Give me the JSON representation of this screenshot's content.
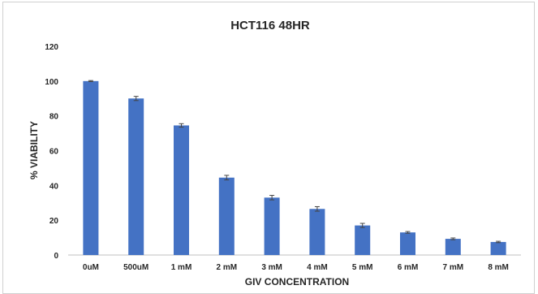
{
  "chart_data": {
    "type": "bar",
    "title": "HCT116 48HR",
    "xlabel": "GIV CONCENTRATION",
    "ylabel": "% VIABILITY",
    "categories": [
      "0uM",
      "500uM",
      "1 mM",
      "2 mM",
      "3 mM",
      "4 mM",
      "5 mM",
      "6 mM",
      "7 mM",
      "8 mM"
    ],
    "values": [
      100,
      90,
      74.5,
      44.5,
      33,
      26.5,
      17,
      13,
      9.3,
      7.5
    ],
    "errors": [
      0.3,
      1.2,
      1.0,
      1.3,
      1.3,
      1.3,
      1.2,
      0.5,
      0.5,
      0.4
    ],
    "ylim": [
      0,
      120
    ],
    "yticks": [
      0,
      20,
      40,
      60,
      80,
      100,
      120
    ],
    "grid": false,
    "legend": "none",
    "colors": {
      "bar": "#4472c4",
      "text": "#262626",
      "axis": "#bfbfbf",
      "error": "#444444"
    }
  }
}
